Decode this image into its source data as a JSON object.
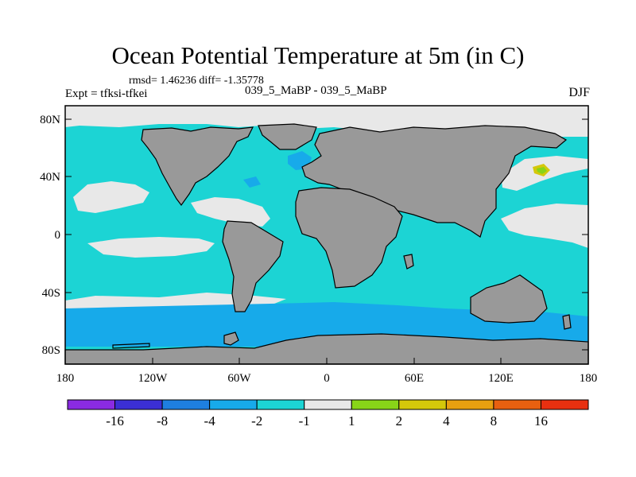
{
  "header": {
    "title": "Ocean Potential Temperature at 5m (in C)",
    "stats": "rmsd= 1.46236 diff= -1.35778",
    "experiment": "Expt = tfksi-tfkei",
    "case": "039_5_MaBP - 039_5_MaBP",
    "season": "DJF"
  },
  "axes": {
    "lat_labels": [
      "80N",
      "40N",
      "0",
      "40S",
      "80S"
    ],
    "lon_labels": [
      "180",
      "120W",
      "60W",
      "0",
      "60E",
      "120E",
      "180"
    ]
  },
  "colors": {
    "land": "#999999",
    "bin_colors": [
      "#8a2be2",
      "#3b2fd4",
      "#1e7fe0",
      "#17aaea",
      "#1cd4d4",
      "#e8e8e8",
      "#88d418",
      "#d4c80a",
      "#e8a010",
      "#e86010",
      "#e83010"
    ]
  },
  "colorbar": {
    "labels": [
      "-16",
      "-8",
      "-4",
      "-2",
      "-1",
      "1",
      "2",
      "4",
      "8",
      "16"
    ]
  }
}
